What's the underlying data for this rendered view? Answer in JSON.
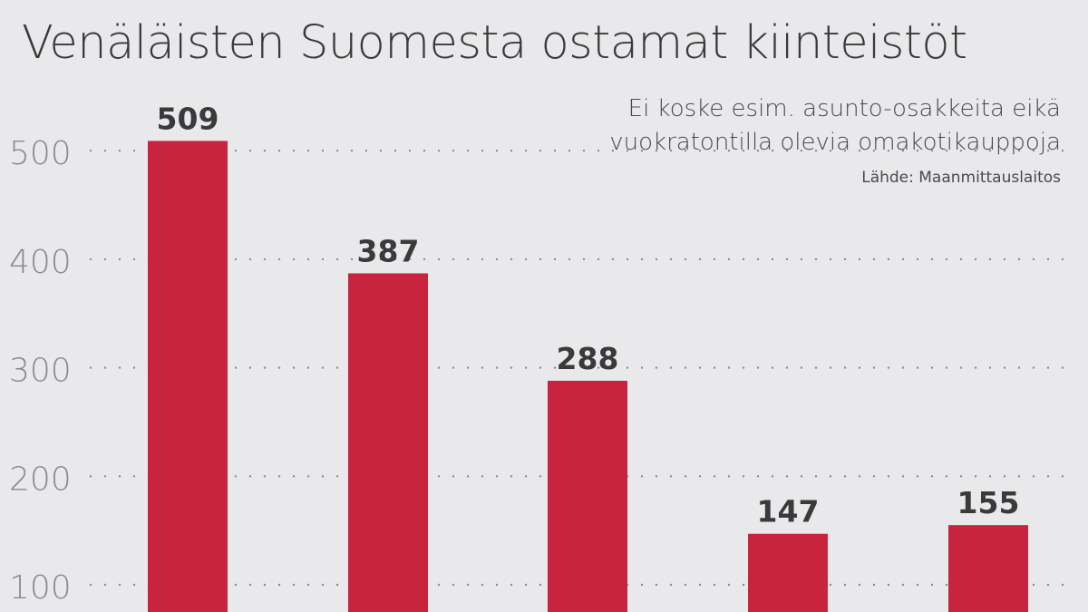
{
  "chart_data": {
    "type": "bar",
    "title": "Venäläisten Suomesta ostamat kiinteistöt",
    "subtitle_lines": [
      "Ei koske esim. asunto-osakkeita eikä",
      "vuokratontilla olevia omakotikauppoja"
    ],
    "source": "Lähde: Maanmittauslaitos",
    "values": [
      509,
      387,
      288,
      147,
      155
    ],
    "data_labels": [
      "509",
      "387",
      "288",
      "147",
      "155"
    ],
    "y_ticks": [
      100,
      200,
      300,
      400,
      500
    ],
    "y_tick_labels": [
      "100",
      "200",
      "300",
      "400",
      "500"
    ],
    "ylim_visible": [
      60,
      580
    ],
    "grid": "dotted horizontal",
    "bar_color": "#c8243f",
    "background_color": "#e9e9eb",
    "text_color": "#3a3a3a",
    "tick_color": "#8a8a8a"
  }
}
